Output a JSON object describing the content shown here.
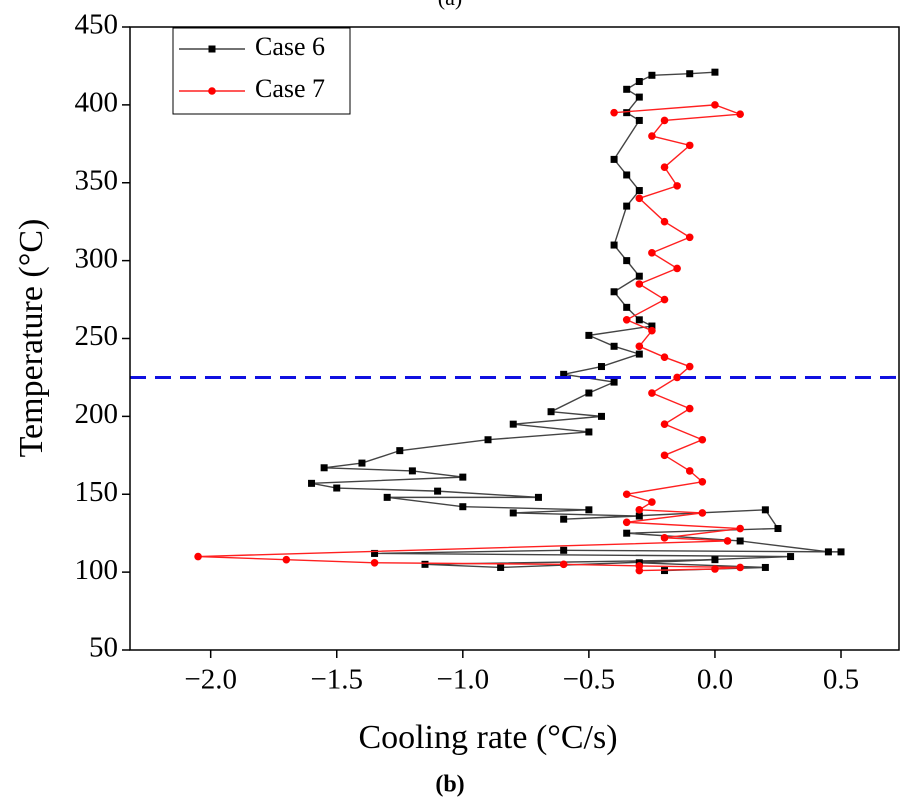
{
  "chart_data": {
    "type": "line",
    "top_caption": "(a)",
    "caption": "(b)",
    "xlabel": "Cooling rate (°C/s)",
    "ylabel": "Temperature (°C)",
    "xlim": [
      -2.32,
      0.73
    ],
    "ylim": [
      50,
      450
    ],
    "xticks": [
      {
        "value": -2.0,
        "label": "−2.0"
      },
      {
        "value": -1.5,
        "label": "−1.5"
      },
      {
        "value": -1.0,
        "label": "−1.0"
      },
      {
        "value": -0.5,
        "label": "−0.5"
      },
      {
        "value": 0.0,
        "label": "0.0"
      },
      {
        "value": 0.5,
        "label": "0.5"
      }
    ],
    "yticks": [
      50,
      100,
      150,
      200,
      250,
      300,
      350,
      400,
      450
    ],
    "legend": "upper left",
    "hline": {
      "value": 225,
      "color": "#1010e0"
    },
    "series": [
      {
        "name": "Case 6",
        "color": "#000000",
        "line_color": "#444444",
        "marker": "square",
        "x": [
          0.0,
          -0.1,
          -0.25,
          -0.3,
          -0.35,
          -0.3,
          -0.35,
          -0.3,
          -0.4,
          -0.35,
          -0.3,
          -0.35,
          -0.4,
          -0.35,
          -0.3,
          -0.4,
          -0.35,
          -0.3,
          -0.25,
          -0.5,
          -0.4,
          -0.3,
          -0.45,
          -0.6,
          -0.4,
          -0.5,
          -0.65,
          -0.45,
          -0.8,
          -0.5,
          -0.9,
          -1.25,
          -1.4,
          -1.55,
          -1.2,
          -1.0,
          -1.6,
          -1.5,
          -1.1,
          -0.7,
          -1.3,
          -1.0,
          -0.5,
          -0.8,
          -0.3,
          -0.6,
          0.2,
          0.25,
          -0.35,
          0.1,
          0.45,
          0.5,
          -0.6,
          -1.35,
          0.3,
          -0.85,
          -1.15,
          0.0,
          -0.3,
          0.2,
          -0.2
        ],
        "values": [
          421,
          420,
          419,
          415,
          410,
          405,
          395,
          390,
          365,
          355,
          345,
          335,
          310,
          300,
          290,
          280,
          270,
          262,
          258,
          252,
          245,
          240,
          232,
          227,
          222,
          215,
          203,
          200,
          195,
          190,
          185,
          178,
          170,
          167,
          165,
          161,
          157,
          154,
          152,
          148,
          148,
          142,
          140,
          138,
          136,
          134,
          140,
          128,
          125,
          120,
          113,
          113,
          114,
          112,
          110,
          103,
          105,
          108,
          106,
          103,
          101
        ]
      },
      {
        "name": "Case 7",
        "color": "#ff0000",
        "line_color": "#ff2020",
        "marker": "circle",
        "x": [
          -0.4,
          0.0,
          0.1,
          -0.2,
          -0.25,
          -0.1,
          -0.2,
          -0.15,
          -0.3,
          -0.2,
          -0.1,
          -0.25,
          -0.15,
          -0.3,
          -0.2,
          -0.35,
          -0.25,
          -0.3,
          -0.2,
          -0.1,
          -0.15,
          -0.25,
          -0.1,
          -0.2,
          -0.05,
          -0.2,
          -0.1,
          -0.05,
          -0.35,
          -0.25,
          -0.3,
          -0.05,
          -0.35,
          0.1,
          -0.2,
          0.05,
          -2.05,
          -1.7,
          -1.35,
          -0.6,
          -0.3,
          0.1,
          0.0,
          -0.3
        ],
        "values": [
          395,
          400,
          394,
          390,
          380,
          374,
          360,
          348,
          340,
          325,
          315,
          305,
          295,
          285,
          275,
          262,
          255,
          245,
          238,
          232,
          225,
          215,
          205,
          195,
          185,
          175,
          165,
          158,
          150,
          145,
          140,
          138,
          132,
          128,
          122,
          120,
          110,
          108,
          106,
          105,
          104,
          103,
          102,
          101
        ]
      }
    ]
  }
}
